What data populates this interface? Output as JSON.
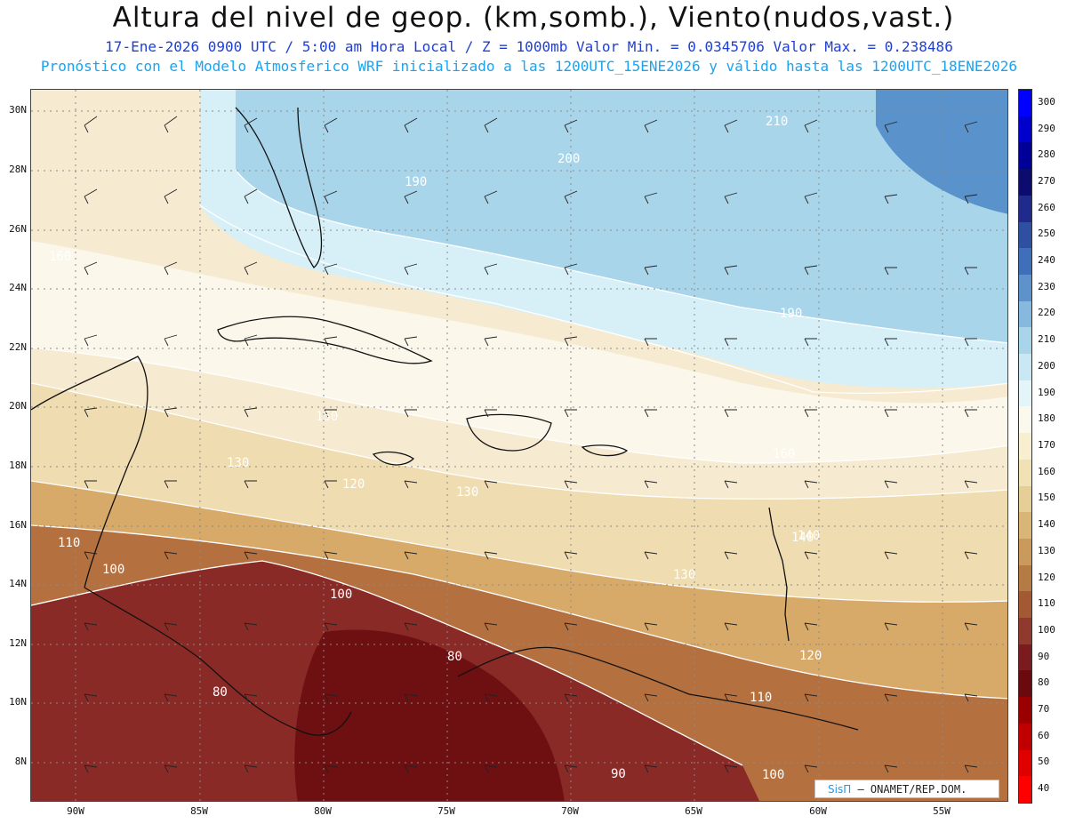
{
  "header": {
    "title": "Altura del nivel de geop. (km,somb.), Viento(nudos,vast.)",
    "subtitle_line1": "17-Ene-2026  0900 UTC / 5:00 am Hora Local / Z = 1000mb  Valor Min. = 0.0345706  Valor Max. = 0.238486",
    "subtitle_line2": "Pronóstico con el Modelo Atmosferico WRF inicializado a las 1200UTC_15ENE2026 y válido hasta las  1200UTC_18ENE2026"
  },
  "map": {
    "lat_labels": [
      "30N",
      "28N",
      "26N",
      "24N",
      "22N",
      "20N",
      "18N",
      "16N",
      "14N",
      "12N",
      "10N",
      "8N"
    ],
    "lon_labels": [
      "90W",
      "85W",
      "80W",
      "75W",
      "70W",
      "65W",
      "60W",
      "55W"
    ],
    "contour_labels": [
      "210",
      "200",
      "190",
      "190",
      "160",
      "150",
      "140",
      "130",
      "130",
      "130",
      "120",
      "110",
      "100",
      "100",
      "90",
      "80",
      "80",
      "140",
      "120",
      "110",
      "100",
      "160"
    ],
    "fill_colors": {
      "highest": "#5a92cc",
      "high": "#a9d5ea",
      "light": "#d7f0f8",
      "neutral": "#fbf7ea",
      "tan_light": "#efdcb0",
      "tan_mid": "#d7aa6a",
      "brown": "#b57040",
      "red_brown": "#8a2a26",
      "dark_red": "#6e0f12"
    }
  },
  "colorbar": {
    "labels": [
      "300",
      "290",
      "280",
      "270",
      "260",
      "250",
      "240",
      "230",
      "220",
      "210",
      "200",
      "190",
      "180",
      "170",
      "160",
      "150",
      "140",
      "130",
      "120",
      "110",
      "100",
      "90",
      "80",
      "70",
      "60",
      "50",
      "40"
    ],
    "colors": [
      "#0000ff",
      "#0000cc",
      "#000099",
      "#0c0c6e",
      "#1f2a8c",
      "#2f4fa0",
      "#3f6fb8",
      "#5e92cb",
      "#87b8dd",
      "#a9d5ea",
      "#c9e8f3",
      "#e4f5fa",
      "#fbf8ee",
      "#f7efcf",
      "#f0e2b5",
      "#e6cf97",
      "#d9b678",
      "#c99a5c",
      "#b57b45",
      "#a35a34",
      "#8f3a2c",
      "#7a1c1f",
      "#6b0a0e",
      "#9a0000",
      "#c00000",
      "#e00000",
      "#ff0000"
    ]
  },
  "branding": {
    "logo": "SisΠ",
    "text": "– ONAMET/REP.DOM."
  }
}
